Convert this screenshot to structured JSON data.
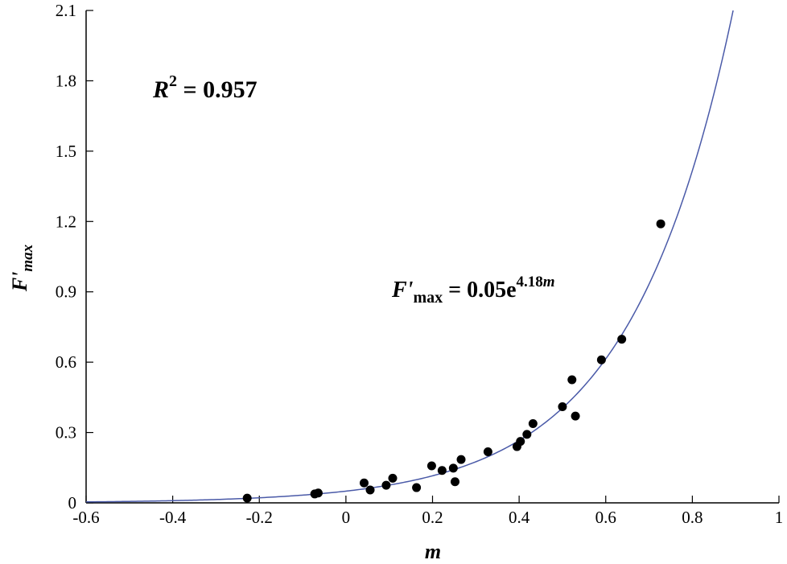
{
  "chart_data": {
    "type": "scatter",
    "xlabel": "m",
    "ylabel": "F'max",
    "ylabel_main": "F'",
    "ylabel_sub": "max",
    "xlim": [
      -0.6,
      1.0
    ],
    "ylim": [
      0,
      2.1
    ],
    "xticks": [
      -0.6,
      -0.4,
      -0.2,
      0,
      0.2,
      0.4,
      0.6,
      0.8,
      1
    ],
    "xtick_labels": [
      "-0.6",
      "-0.4",
      "-0.2",
      "0",
      "0.2",
      "0.4",
      "0.6",
      "0.8",
      "1"
    ],
    "yticks": [
      0,
      0.3,
      0.6,
      0.9,
      1.2,
      1.5,
      1.8,
      2.1
    ],
    "ytick_labels": [
      "0",
      "0.3",
      "0.6",
      "0.9",
      "1.2",
      "1.5",
      "1.8",
      "2.1"
    ],
    "grid": false,
    "points": [
      {
        "x": -0.228,
        "y": 0.02
      },
      {
        "x": -0.072,
        "y": 0.038
      },
      {
        "x": -0.064,
        "y": 0.042
      },
      {
        "x": 0.042,
        "y": 0.085
      },
      {
        "x": 0.056,
        "y": 0.055
      },
      {
        "x": 0.093,
        "y": 0.075
      },
      {
        "x": 0.108,
        "y": 0.105
      },
      {
        "x": 0.163,
        "y": 0.065
      },
      {
        "x": 0.198,
        "y": 0.158
      },
      {
        "x": 0.222,
        "y": 0.138
      },
      {
        "x": 0.248,
        "y": 0.148
      },
      {
        "x": 0.252,
        "y": 0.09
      },
      {
        "x": 0.266,
        "y": 0.185
      },
      {
        "x": 0.328,
        "y": 0.218
      },
      {
        "x": 0.395,
        "y": 0.24
      },
      {
        "x": 0.403,
        "y": 0.262
      },
      {
        "x": 0.418,
        "y": 0.292
      },
      {
        "x": 0.432,
        "y": 0.338
      },
      {
        "x": 0.5,
        "y": 0.41
      },
      {
        "x": 0.522,
        "y": 0.525
      },
      {
        "x": 0.53,
        "y": 0.37
      },
      {
        "x": 0.59,
        "y": 0.61
      },
      {
        "x": 0.637,
        "y": 0.698
      },
      {
        "x": 0.727,
        "y": 1.19
      }
    ],
    "fit": {
      "a": 0.05,
      "b": 4.18,
      "color": "#4a5aa8"
    },
    "point_color": "#000000",
    "annotations": {
      "r2_label": "R",
      "r2_sup": "2",
      "r2_value": " = 0.957",
      "eq_lhs": "F'",
      "eq_lhs_sub": "max",
      "eq_rhs": " = 0.05e",
      "eq_exp_num": "4.18",
      "eq_exp_var": "m"
    }
  }
}
